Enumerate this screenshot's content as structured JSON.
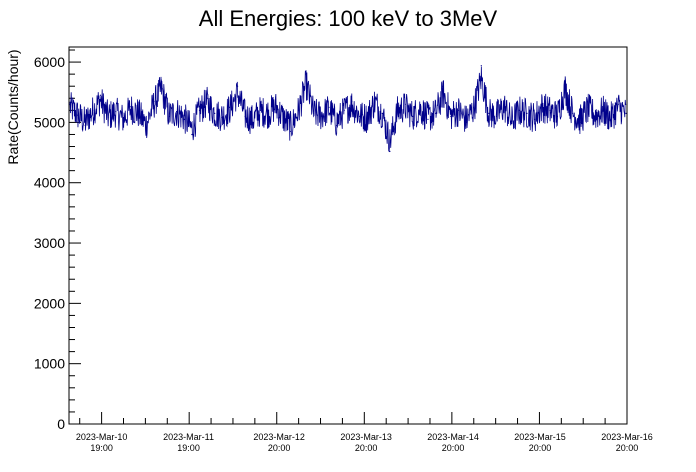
{
  "chart_data": {
    "type": "line",
    "title": "All Energies:  100 keV to 3MeV",
    "xlabel": "",
    "ylabel": "Rate(Counts/hour)",
    "ylim": [
      0,
      6250
    ],
    "xlim": [
      "2023-03-10 10:00",
      "2023-03-16 20:00"
    ],
    "yticks": [
      "0",
      "1000",
      "2000",
      "3000",
      "4000",
      "5000",
      "6000"
    ],
    "xticks": [
      {
        "date": "2023-Mar-10",
        "time": "19:00"
      },
      {
        "date": "2023-Mar-11",
        "time": "19:00"
      },
      {
        "date": "2023-Mar-12",
        "time": "20:00"
      },
      {
        "date": "2023-Mar-13",
        "time": "20:00"
      },
      {
        "date": "2023-Mar-14",
        "time": "20:00"
      },
      {
        "date": "2023-Mar-15",
        "time": "20:00"
      },
      {
        "date": "2023-Mar-16",
        "time": "20:00"
      }
    ],
    "series": [
      {
        "color": "#00008b",
        "mean": 5150,
        "min": 4520,
        "max": 5940,
        "values": [
          5300,
          5120,
          4950,
          5200,
          5450,
          5080,
          5180,
          5020,
          5260,
          5150,
          4900,
          5350,
          5700,
          5100,
          5180,
          5050,
          4800,
          5200,
          5400,
          5150,
          5080,
          5250,
          5600,
          5100,
          5000,
          5200,
          5150,
          5300,
          5050,
          4850,
          5200,
          5800,
          5150,
          5100,
          5250,
          4950,
          5200,
          5350,
          5100,
          5050,
          5400,
          5150,
          4520,
          5200,
          5300,
          5100,
          5250,
          5050,
          5150,
          5600,
          5100,
          5200,
          5000,
          5250,
          5940,
          5150,
          5100,
          5300,
          4980,
          5200,
          5150,
          5050,
          5300,
          5200,
          5100,
          5700,
          5150,
          5000,
          5250,
          5100,
          5200,
          5050,
          5300,
          5150
        ]
      }
    ],
    "grid": false,
    "legend": "none"
  }
}
